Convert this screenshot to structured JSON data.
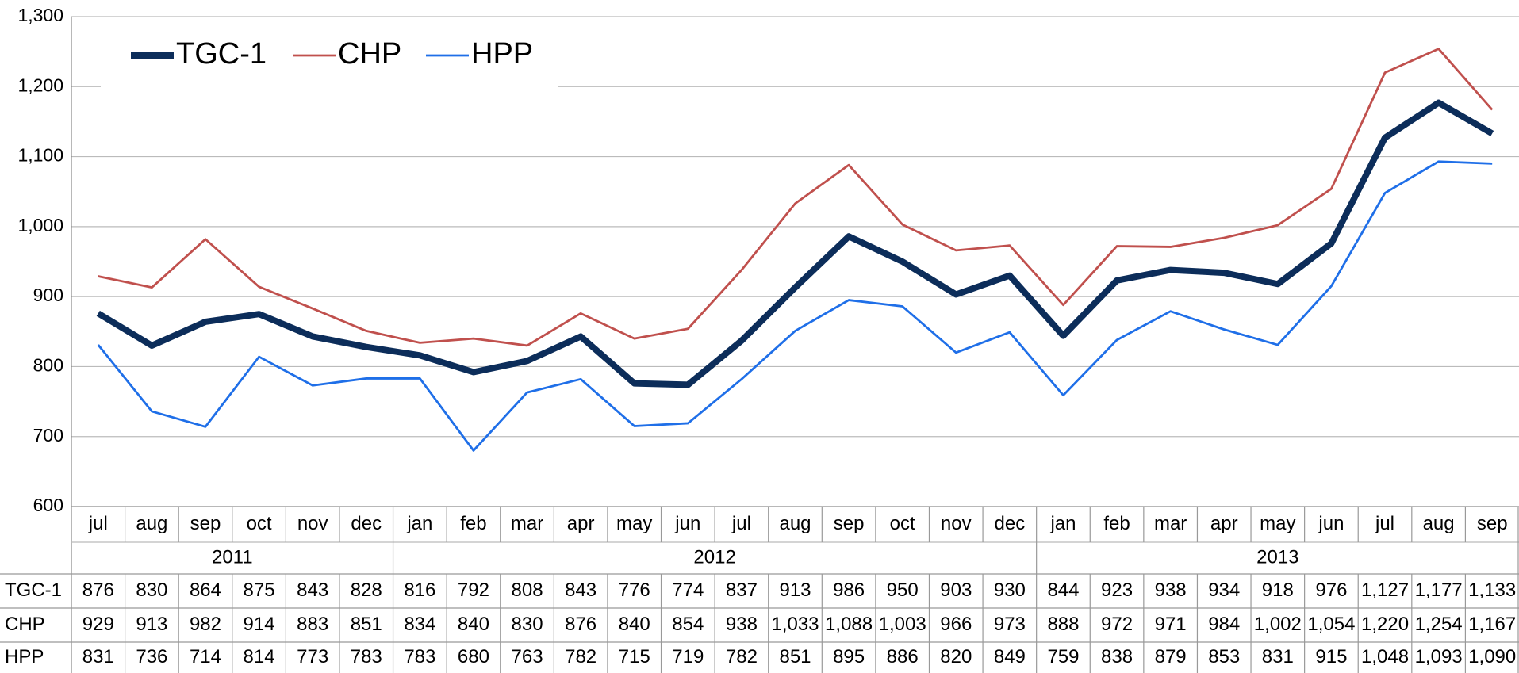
{
  "chart_data": {
    "type": "line",
    "categories": [
      "jul",
      "aug",
      "sep",
      "oct",
      "nov",
      "dec",
      "jan",
      "feb",
      "mar",
      "apr",
      "may",
      "jun",
      "jul",
      "aug",
      "sep",
      "oct",
      "nov",
      "dec",
      "jan",
      "feb",
      "mar",
      "apr",
      "may",
      "jun",
      "jul",
      "aug",
      "sep"
    ],
    "years": [
      "2011",
      "2011",
      "2011",
      "2011",
      "2011",
      "2011",
      "2012",
      "2012",
      "2012",
      "2012",
      "2012",
      "2012",
      "2012",
      "2012",
      "2012",
      "2012",
      "2012",
      "2012",
      "2013",
      "2013",
      "2013",
      "2013",
      "2013",
      "2013",
      "2013",
      "2013",
      "2013"
    ],
    "series": [
      {
        "name": "TGC-1",
        "color": "#0c2d5a",
        "values": [
          876,
          830,
          864,
          875,
          843,
          828,
          816,
          792,
          808,
          843,
          776,
          774,
          837,
          913,
          986,
          950,
          903,
          930,
          844,
          923,
          938,
          934,
          918,
          976,
          1127,
          1177,
          1133
        ],
        "value_labels": [
          "876",
          "830",
          "864",
          "875",
          "843",
          "828",
          "816",
          "792",
          "808",
          "843",
          "776",
          "774",
          "837",
          "913",
          "986",
          "950",
          "903",
          "930",
          "844",
          "923",
          "938",
          "934",
          "918",
          "976",
          "1,127",
          "1,177",
          "1,133"
        ]
      },
      {
        "name": "CHP",
        "color": "#c0504d",
        "values": [
          929,
          913,
          982,
          914,
          883,
          851,
          834,
          840,
          830,
          876,
          840,
          854,
          938,
          1033,
          1088,
          1003,
          966,
          973,
          888,
          972,
          971,
          984,
          1002,
          1054,
          1220,
          1254,
          1167
        ],
        "value_labels": [
          "929",
          "913",
          "982",
          "914",
          "883",
          "851",
          "834",
          "840",
          "830",
          "876",
          "840",
          "854",
          "938",
          "1,033",
          "1,088",
          "1,003",
          "966",
          "973",
          "888",
          "972",
          "971",
          "984",
          "1,002",
          "1,054",
          "1,220",
          "1,254",
          "1,167"
        ]
      },
      {
        "name": "HPP",
        "color": "#1f6fe8",
        "values": [
          831,
          736,
          714,
          814,
          773,
          783,
          783,
          680,
          763,
          782,
          715,
          719,
          782,
          851,
          895,
          886,
          820,
          849,
          759,
          838,
          879,
          853,
          831,
          915,
          1048,
          1093,
          1090
        ],
        "value_labels": [
          "831",
          "736",
          "714",
          "814",
          "773",
          "783",
          "783",
          "680",
          "763",
          "782",
          "715",
          "719",
          "782",
          "851",
          "895",
          "886",
          "820",
          "849",
          "759",
          "838",
          "879",
          "853",
          "831",
          "915",
          "1,048",
          "1,093",
          "1,090"
        ]
      }
    ],
    "ylim": [
      600,
      1300
    ],
    "yticks": [
      600,
      700,
      800,
      900,
      {
        "value": 1000,
        "label": "1,000"
      },
      {
        "value": 1100,
        "label": "1,100"
      },
      {
        "value": 1200,
        "label": "1,200"
      },
      {
        "value": 1300,
        "label": "1,300"
      }
    ],
    "grid": true,
    "legend": "upper left"
  }
}
